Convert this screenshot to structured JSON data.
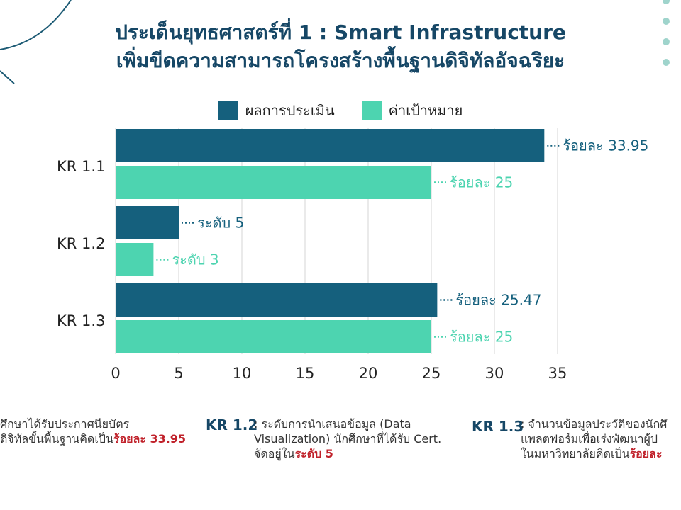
{
  "title_line1": "ประเด็นยุทธศาสตร์ที่ 1 : Smart Infrastructure",
  "title_line2": "เพิ่มขีดความสามารถโครงสร้างพื้นฐานดิจิทัลอัจฉริยะ",
  "colors": {
    "actual": "#15607d",
    "target": "#4dd4b0",
    "title": "#164766",
    "highlight": "#c0212a"
  },
  "chart_data": {
    "type": "bar",
    "orientation": "horizontal",
    "categories": [
      "KR 1.1",
      "KR 1.2",
      "KR 1.3"
    ],
    "series": [
      {
        "name": "ผลการประเมิน",
        "values": [
          33.95,
          5,
          25.47
        ],
        "labels": [
          "ร้อยละ 33.95",
          "ระดับ 5",
          "ร้อยละ 25.47"
        ]
      },
      {
        "name": "ค่าเป้าหมาย",
        "values": [
          25,
          3,
          25
        ],
        "labels": [
          "ร้อยละ 25",
          "ระดับ 3",
          "ร้อยละ 25"
        ]
      }
    ],
    "xlim": [
      0,
      35
    ],
    "xticks": [
      "0",
      "5",
      "10",
      "15",
      "20",
      "25",
      "30",
      "35"
    ],
    "grid": true,
    "legend": "top"
  },
  "notes": [
    {
      "label": "",
      "text": "ศึกษาได้รับประกาศนียบัตร\nดิจิทัลขั้นพื้นฐานคิดเป็น",
      "highlight": "ร้อยละ 33.95"
    },
    {
      "label": "KR 1.2",
      "text": ": ระดับการนำเสนอข้อมูล (Data\nVisualization) นักศึกษาที่ได้รับ Cert.\nจัดอยู่ใน",
      "highlight": "ระดับ 5"
    },
    {
      "label": "KR 1.3",
      "text": ": จำนวนข้อมูลประวัติของนักศึ\nแพลตฟอร์มเพื่อเร่งพัฒนาผู้ป\nในมหาวิทยาลัยคิดเป็น",
      "highlight": "ร้อยละ"
    }
  ]
}
